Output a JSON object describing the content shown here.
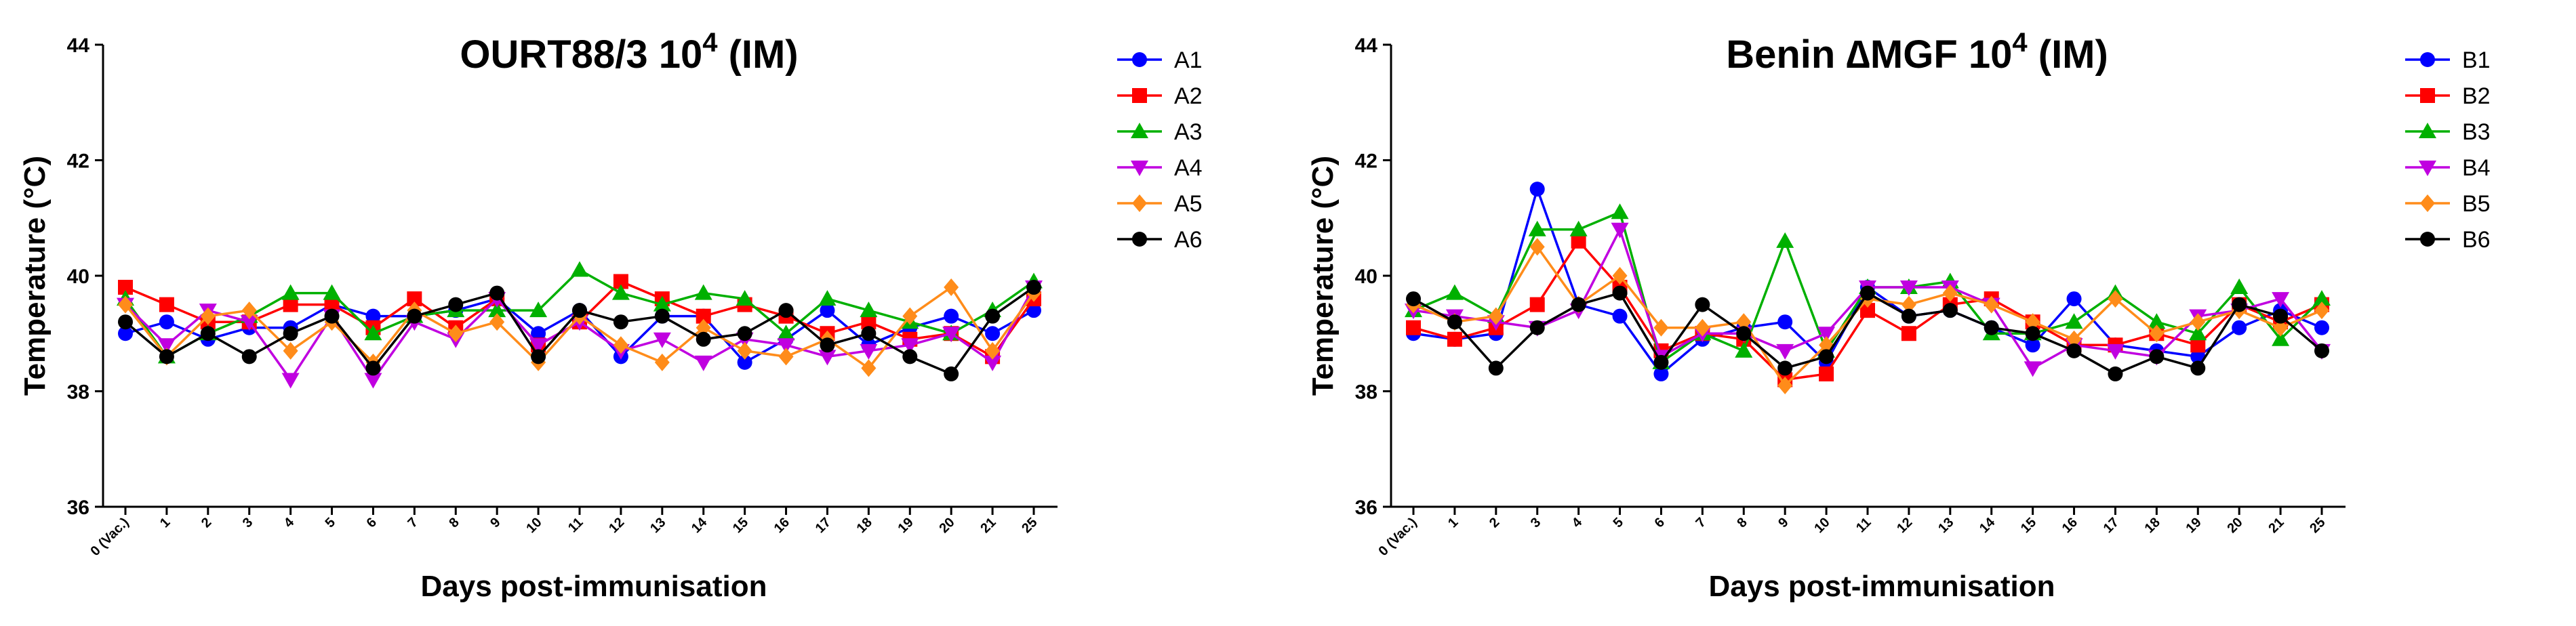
{
  "chart_data": [
    {
      "type": "line",
      "title": "OURT88/3 10",
      "title_sup": "4",
      "title_suffix": " (IM)",
      "xlabel": "Days post-immunisation",
      "ylabel": "Temperature (°C)",
      "ylim": [
        36,
        44
      ],
      "yticks": [
        "36",
        "38",
        "40",
        "42",
        "44"
      ],
      "categories": [
        "0 (Vac.)",
        "1",
        "2",
        "3",
        "4",
        "5",
        "6",
        "7",
        "8",
        "9",
        "10",
        "11",
        "12",
        "13",
        "14",
        "15",
        "16",
        "17",
        "18",
        "19",
        "20",
        "21",
        "25"
      ],
      "grid": false,
      "legend_position": "right",
      "series": [
        {
          "name": "A1",
          "color": "#0000ff",
          "marker": "circle",
          "values": [
            39.0,
            39.2,
            38.9,
            39.1,
            39.1,
            39.5,
            39.3,
            39.3,
            39.4,
            39.6,
            39.0,
            39.4,
            38.6,
            39.3,
            39.3,
            38.5,
            38.9,
            39.4,
            38.8,
            39.1,
            39.3,
            39.0,
            39.4
          ]
        },
        {
          "name": "A2",
          "color": "#ff0000",
          "marker": "square",
          "values": [
            39.8,
            39.5,
            39.2,
            39.2,
            39.5,
            39.5,
            39.1,
            39.6,
            39.1,
            39.6,
            38.8,
            39.2,
            39.9,
            39.6,
            39.3,
            39.5,
            39.3,
            39.0,
            39.2,
            38.9,
            39.0,
            38.6,
            39.6
          ]
        },
        {
          "name": "A3",
          "color": "#00b000",
          "marker": "triangle-up",
          "values": [
            39.6,
            38.6,
            39.0,
            39.3,
            39.7,
            39.7,
            39.0,
            39.3,
            39.4,
            39.4,
            39.4,
            40.1,
            39.7,
            39.5,
            39.7,
            39.6,
            39.0,
            39.6,
            39.4,
            39.2,
            39.0,
            39.4,
            39.9
          ]
        },
        {
          "name": "A4",
          "color": "#c000e0",
          "marker": "triangle-down",
          "values": [
            39.5,
            38.8,
            39.4,
            39.2,
            38.2,
            39.3,
            38.2,
            39.2,
            38.9,
            39.6,
            38.8,
            39.2,
            38.7,
            38.9,
            38.5,
            38.9,
            38.8,
            38.6,
            38.7,
            38.8,
            39.0,
            38.5,
            39.8
          ]
        },
        {
          "name": "A5",
          "color": "#ff8c1a",
          "marker": "diamond",
          "values": [
            39.5,
            38.6,
            39.3,
            39.4,
            38.7,
            39.2,
            38.5,
            39.4,
            39.0,
            39.2,
            38.5,
            39.3,
            38.8,
            38.5,
            39.1,
            38.7,
            38.6,
            38.9,
            38.4,
            39.3,
            39.8,
            38.7,
            39.7
          ]
        },
        {
          "name": "A6",
          "color": "#000000",
          "marker": "circle",
          "values": [
            39.2,
            38.6,
            39.0,
            38.6,
            39.0,
            39.3,
            38.4,
            39.3,
            39.5,
            39.7,
            38.6,
            39.4,
            39.2,
            39.3,
            38.9,
            39.0,
            39.4,
            38.8,
            39.0,
            38.6,
            38.3,
            39.3,
            39.8
          ]
        }
      ]
    },
    {
      "type": "line",
      "title": "Benin ∆MGF 10",
      "title_sup": "4",
      "title_suffix": " (IM)",
      "xlabel": "Days post-immunisation",
      "ylabel": "Temperature (°C)",
      "ylim": [
        36,
        44
      ],
      "yticks": [
        "36",
        "38",
        "40",
        "42",
        "44"
      ],
      "categories": [
        "0 (Vac.)",
        "1",
        "2",
        "3",
        "4",
        "5",
        "6",
        "7",
        "8",
        "9",
        "10",
        "11",
        "12",
        "13",
        "14",
        "15",
        "16",
        "17",
        "18",
        "19",
        "20",
        "21",
        "25"
      ],
      "grid": false,
      "legend_position": "right",
      "series": [
        {
          "name": "B1",
          "color": "#0000ff",
          "marker": "circle",
          "values": [
            39.0,
            38.9,
            39.0,
            41.5,
            39.5,
            39.3,
            38.3,
            38.9,
            39.1,
            39.2,
            38.5,
            39.8,
            39.3,
            39.4,
            39.1,
            38.8,
            39.6,
            38.8,
            38.7,
            38.6,
            39.1,
            39.4,
            39.1
          ]
        },
        {
          "name": "B2",
          "color": "#ff0000",
          "marker": "square",
          "values": [
            39.1,
            38.9,
            39.1,
            39.5,
            40.6,
            39.8,
            38.7,
            39.0,
            38.9,
            38.2,
            38.3,
            39.4,
            39.0,
            39.5,
            39.6,
            39.2,
            38.8,
            38.8,
            39.0,
            38.8,
            39.5,
            39.2,
            39.5
          ]
        },
        {
          "name": "B3",
          "color": "#00b000",
          "marker": "triangle-up",
          "values": [
            39.4,
            39.7,
            39.3,
            40.8,
            40.8,
            41.1,
            38.5,
            39.0,
            38.7,
            40.6,
            38.7,
            39.8,
            39.8,
            39.9,
            39.0,
            39.0,
            39.2,
            39.7,
            39.2,
            39.0,
            39.8,
            38.9,
            39.6
          ]
        },
        {
          "name": "B4",
          "color": "#c000e0",
          "marker": "triangle-down",
          "values": [
            39.4,
            39.3,
            39.2,
            39.1,
            39.4,
            40.8,
            38.6,
            39.0,
            39.0,
            38.7,
            39.0,
            39.8,
            39.8,
            39.8,
            39.5,
            38.4,
            38.8,
            38.7,
            38.6,
            39.3,
            39.4,
            39.6,
            38.7
          ]
        },
        {
          "name": "B5",
          "color": "#ff8c1a",
          "marker": "diamond",
          "values": [
            39.5,
            39.2,
            39.3,
            40.5,
            39.5,
            40.0,
            39.1,
            39.1,
            39.2,
            38.1,
            38.8,
            39.6,
            39.5,
            39.7,
            39.5,
            39.2,
            38.9,
            39.6,
            39.0,
            39.2,
            39.4,
            39.1,
            39.4
          ]
        },
        {
          "name": "B6",
          "color": "#000000",
          "marker": "circle",
          "values": [
            39.6,
            39.2,
            38.4,
            39.1,
            39.5,
            39.7,
            38.5,
            39.5,
            39.0,
            38.4,
            38.6,
            39.7,
            39.3,
            39.4,
            39.1,
            39.0,
            38.7,
            38.3,
            38.6,
            38.4,
            39.5,
            39.3,
            38.7
          ]
        }
      ]
    }
  ]
}
